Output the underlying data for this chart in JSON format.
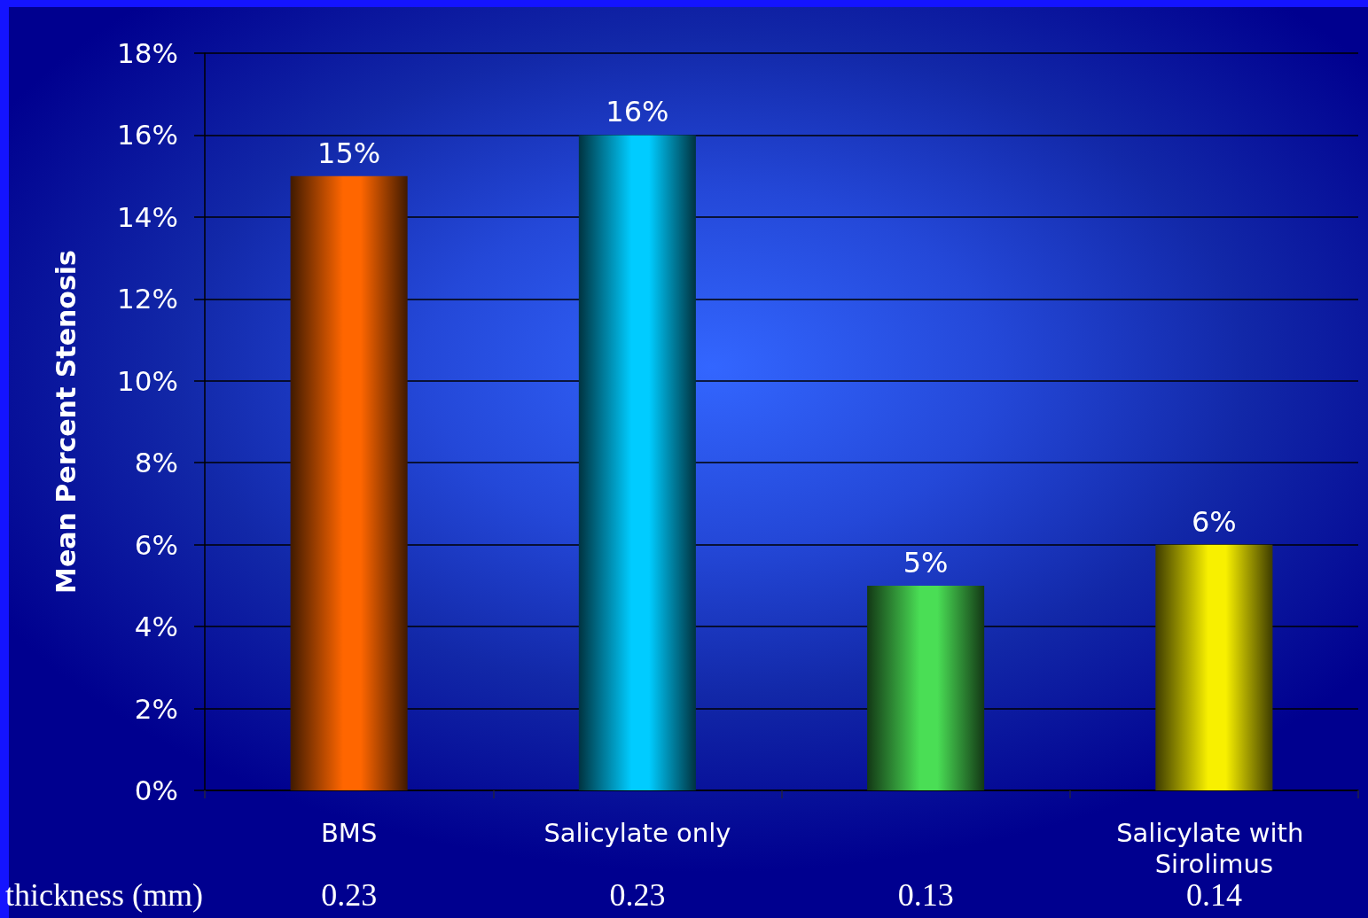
{
  "chart_data": {
    "type": "bar",
    "ylabel": "Mean Percent Stenosis",
    "categories": [
      "BMS",
      "Salicylate only",
      null,
      "Salicylate with Sirolimus"
    ],
    "values": [
      15,
      16,
      5,
      6
    ],
    "colors": [
      "#ff6600",
      "#00ccff",
      "#4ade55",
      "#f8f000"
    ],
    "value_labels": [
      "15%",
      "16%",
      "5%",
      "6%"
    ],
    "ylim": [
      0,
      18
    ],
    "yticks": [
      {
        "value": 0,
        "label": "0%"
      },
      {
        "value": 2,
        "label": "2%"
      },
      {
        "value": 4,
        "label": "4%"
      },
      {
        "value": 6,
        "label": "6%"
      },
      {
        "value": 8,
        "label": "8%"
      },
      {
        "value": 10,
        "label": "10%"
      },
      {
        "value": 12,
        "label": "12%"
      },
      {
        "value": 14,
        "label": "14%"
      },
      {
        "value": 16,
        "label": "16%"
      },
      {
        "value": 18,
        "label": "18%"
      }
    ],
    "grid": "y",
    "annotations": [
      "thickness (mm)",
      "0.23",
      "0.23",
      "0.13",
      "0.14"
    ]
  }
}
